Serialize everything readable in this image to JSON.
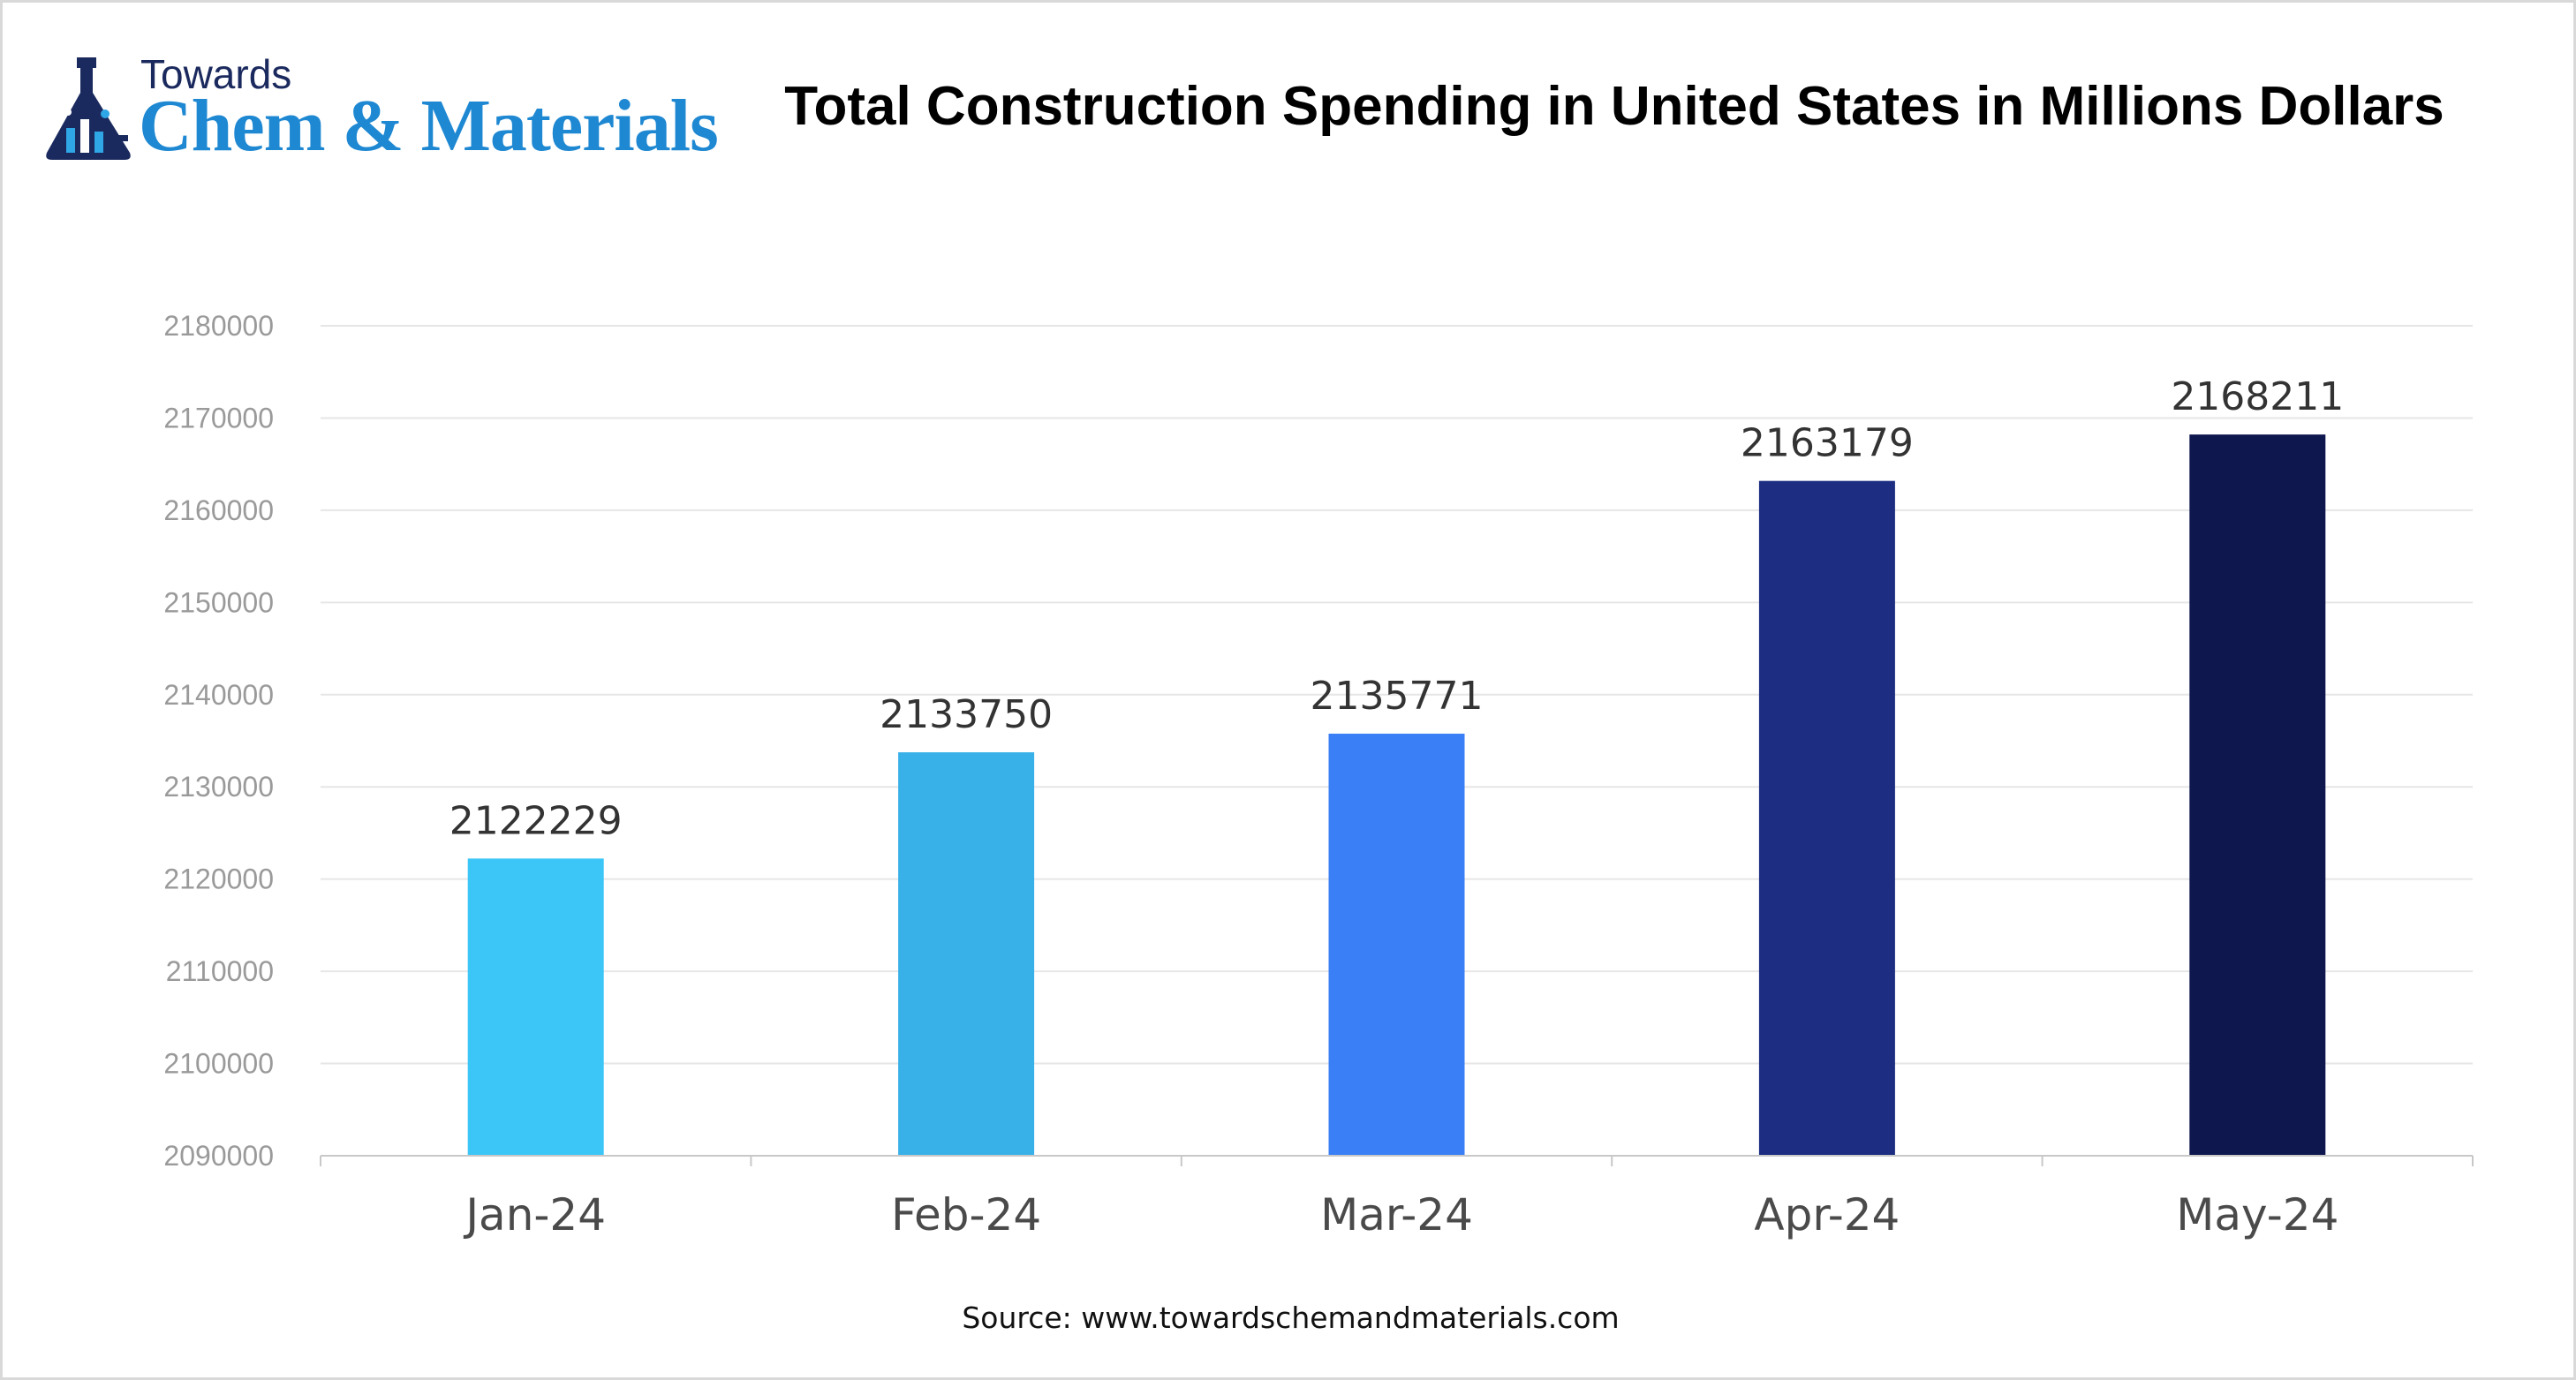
{
  "logo": {
    "line1": "Towards",
    "line2": "Chem & Materials",
    "icon": "flask-icon",
    "colors": {
      "dark": "#1b2a5e",
      "accent": "#1e88d2"
    }
  },
  "source_text": "Source: www.towardschemandmaterials.com",
  "chart_data": {
    "type": "bar",
    "title": "Total Construction Spending in United States in Millions Dollars",
    "xlabel": "",
    "ylabel": "",
    "categories": [
      "Jan-24",
      "Feb-24",
      "Mar-24",
      "Apr-24",
      "May-24"
    ],
    "values": [
      2122229,
      2133750,
      2135771,
      2163179,
      2168211
    ],
    "data_labels": [
      "2122229",
      "2133750",
      "2135771",
      "2163179",
      "2168211"
    ],
    "bar_colors": [
      "#3bc6f7",
      "#38b1e8",
      "#3a7ff5",
      "#1c2d82",
      "#0f174f"
    ],
    "ylim": [
      2090000,
      2180000
    ],
    "yticks": [
      2090000,
      2100000,
      2110000,
      2120000,
      2130000,
      2140000,
      2150000,
      2160000,
      2170000,
      2180000
    ],
    "ytick_labels": [
      "2090000",
      "2100000",
      "2110000",
      "2120000",
      "2130000",
      "2140000",
      "2150000",
      "2160000",
      "2170000",
      "2180000"
    ],
    "grid": true,
    "legend": "none"
  }
}
